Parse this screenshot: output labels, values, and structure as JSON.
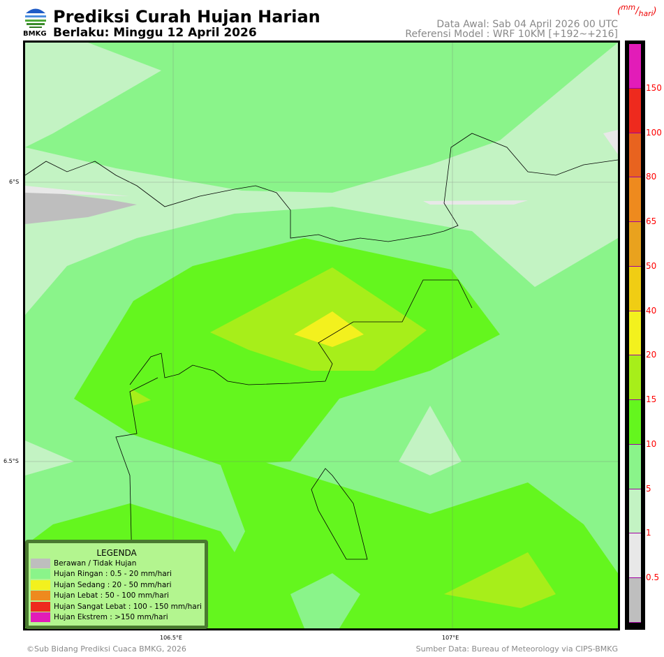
{
  "header": {
    "logo_text": "BMKG",
    "title": "Prediksi Curah Hujan Harian",
    "valid": "Berlaku: Minggu 12 April 2026",
    "init": "Data Awal: Sab 04 April 2026 00 UTC",
    "model": "Referensi Model : WRF 10KM [+192~+216]",
    "unit_num": "mm",
    "unit_den": "hari"
  },
  "map": {
    "lon_labels": [
      "106.5°E",
      "107°E"
    ],
    "lat_labels": [
      "6°S",
      "6.5°S"
    ],
    "colors": {
      "sea_light": "#8af48a",
      "very_light": "#c3f3c3",
      "moderate": "#64f61e",
      "heavy": "#a7ee1a",
      "yellow": "#f3f11e",
      "grey": "#bebebe",
      "white": "#e8e8e8"
    }
  },
  "colorbar": {
    "segments": [
      "#e21cb8",
      "#ee2a1e",
      "#e8631f",
      "#ee8a1e",
      "#e9a21e",
      "#f0cd14",
      "#f3f11e",
      "#a7ee1a",
      "#64f61e",
      "#8af48a",
      "#c3f3c3",
      "#e8e8e8",
      "#bebebe"
    ],
    "labels": [
      "150",
      "100",
      "80",
      "65",
      "50",
      "40",
      "20",
      "15",
      "10",
      "5",
      "1",
      "0.5"
    ]
  },
  "legend": {
    "title": "LEGENDA",
    "items": [
      {
        "label": "Berawan / Tidak Hujan",
        "color": "#bebebe"
      },
      {
        "label": "Hujan Ringan : 0.5 - 20 mm/hari",
        "color": "#8af48a"
      },
      {
        "label": "Hujan Sedang : 20 - 50 mm/hari",
        "color": "#f3f11e"
      },
      {
        "label": "Hujan Lebat : 50 - 100 mm/hari",
        "color": "#ee8a1e"
      },
      {
        "label": "Hujan Sangat Lebat : 100 - 150 mm/hari",
        "color": "#ee2a1e"
      },
      {
        "label": "Hujan Ekstrem : >150 mm/hari",
        "color": "#e21cb8"
      }
    ]
  },
  "footer": {
    "copyright": "©Sub Bidang Prediksi Cuaca BMKG, 2026",
    "source": "Sumber Data: Bureau of Meteorology via CIPS-BMKG"
  }
}
